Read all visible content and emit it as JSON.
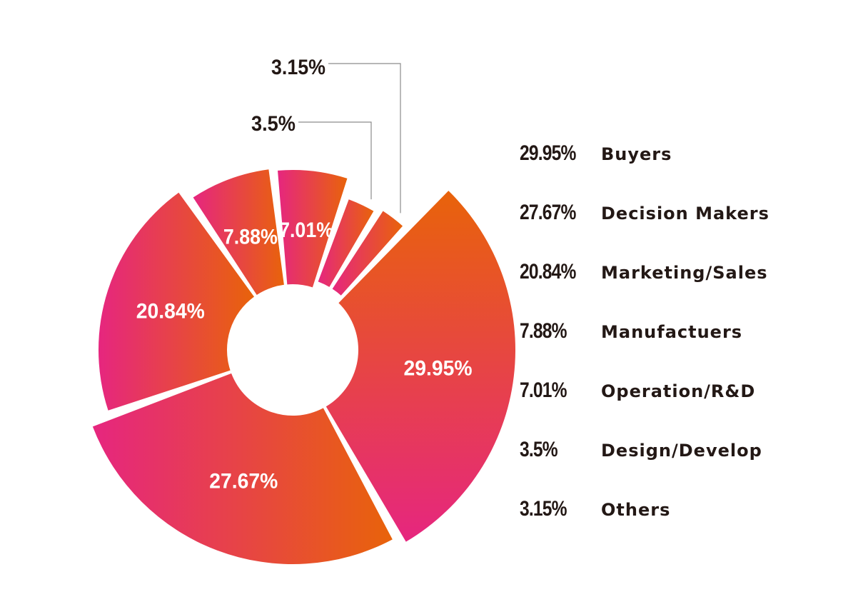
{
  "chart_data": {
    "type": "pie",
    "variant": "donut",
    "categories": [
      "Buyers",
      "Decision Makers",
      "Marketing/Sales",
      "Manufactuers",
      "Operation/R&D",
      "Design/Develop",
      "Others"
    ],
    "values": [
      29.95,
      27.67,
      20.84,
      7.88,
      7.01,
      3.5,
      3.15
    ],
    "labels": [
      "29.95%",
      "27.67%",
      "20.84%",
      "7.88%",
      "7.01%",
      "3.5%",
      "3.15%"
    ],
    "legend_position": "right",
    "colors": {
      "pink": "#e6267f",
      "orange": "#e8630a",
      "text_dark": "#231815",
      "leader_line": "#8c8c8c"
    }
  }
}
